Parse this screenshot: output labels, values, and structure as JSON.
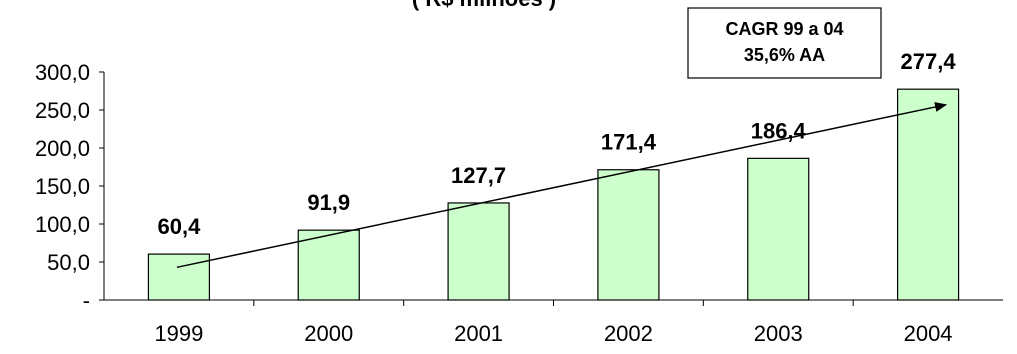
{
  "chart_data": {
    "type": "bar",
    "title": "( R$ milhões )",
    "categories": [
      "1999",
      "2000",
      "2001",
      "2002",
      "2003",
      "2004"
    ],
    "values": [
      60.4,
      91.9,
      127.7,
      171.4,
      186.4,
      277.4
    ],
    "data_labels": [
      "60,4",
      "91,9",
      "127,7",
      "171,4",
      "186,4",
      "277,4"
    ],
    "y_tick_values": [
      0,
      50,
      100,
      150,
      200,
      250,
      300
    ],
    "y_tick_labels": [
      "-",
      "50,0",
      "100,0",
      "150,0",
      "200,0",
      "250,0",
      "300,0"
    ],
    "ylim": [
      0,
      300
    ],
    "bar_color": "#ccffcc",
    "bar_stroke": "#000000",
    "grid": false,
    "annotation": {
      "lines": [
        "CAGR 99 a 04",
        "35,6% AA"
      ]
    },
    "trend_arrow": {
      "from": {
        "category": "1999",
        "value": 43
      },
      "to": {
        "category": "2004",
        "value": 257
      }
    }
  }
}
